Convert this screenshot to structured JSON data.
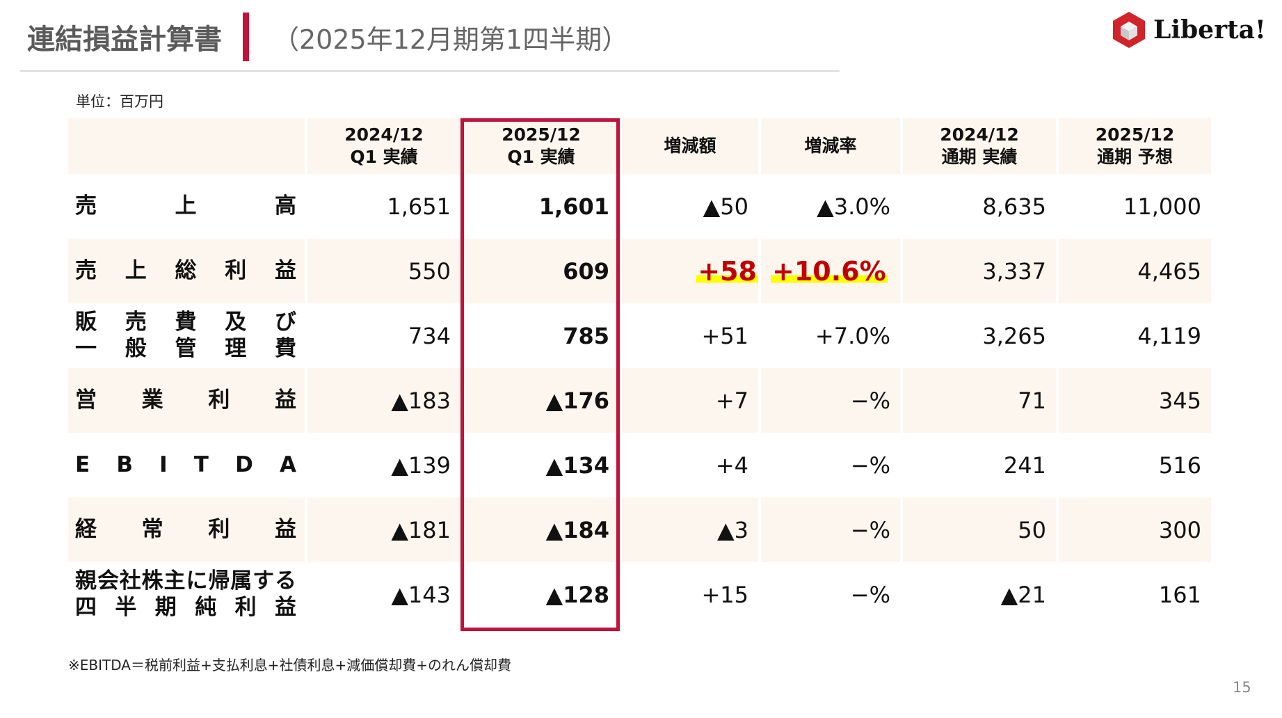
{
  "header": {
    "title": "連結損益計算書",
    "subtitle": "（2025年12月期第1四半期）",
    "logo_text": "Liberta!"
  },
  "unit": "単位：百万円",
  "columns": [
    "2024/12\nQ1 実績",
    "2025/12\nQ1 実績",
    "増減額",
    "増減率",
    "2024/12\n通期 実績",
    "2025/12\n通期 予想"
  ],
  "rows": [
    {
      "label": [
        "売上高"
      ],
      "values": [
        "1,651",
        "1,601",
        "▲50",
        "▲3.0%",
        "8,635",
        "11,000"
      ]
    },
    {
      "label": [
        "売上総利益"
      ],
      "values": [
        "550",
        "609",
        "+58",
        "+10.6%",
        "3,337",
        "4,465"
      ],
      "highlight": true
    },
    {
      "label": [
        "販売費及び",
        "一般管理費"
      ],
      "values": [
        "734",
        "785",
        "+51",
        "+7.0%",
        "3,265",
        "4,119"
      ]
    },
    {
      "label": [
        "営業利益"
      ],
      "values": [
        "▲183",
        "▲176",
        "+7",
        "−%",
        "71",
        "345"
      ]
    },
    {
      "label": [
        "EBITDA"
      ],
      "values": [
        "▲139",
        "▲134",
        "+4",
        "−%",
        "241",
        "516"
      ]
    },
    {
      "label": [
        "経常利益"
      ],
      "values": [
        "▲181",
        "▲184",
        "▲3",
        "−%",
        "50",
        "300"
      ]
    },
    {
      "label": [
        "親会社株主に帰属する",
        "四半期純利益"
      ],
      "values": [
        "▲143",
        "▲128",
        "+15",
        "−%",
        "▲21",
        "161"
      ]
    }
  ],
  "colors": {
    "accent": "#c0123c",
    "highlight_text": "#c00000",
    "highlight_bg": "#ffff00",
    "row_cream": "#fdf6ee"
  },
  "footnote": "※EBITDA＝税前利益+支払利息+社債利息+減価償却費+のれん償却費",
  "page_number": "15"
}
